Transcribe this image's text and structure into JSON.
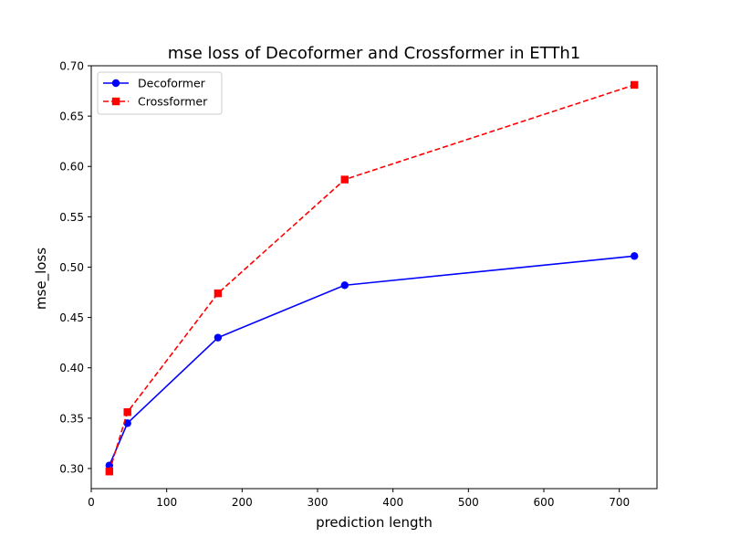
{
  "chart_data": {
    "type": "line",
    "title": "mse loss of Decoformer and Crossformer in ETTh1",
    "xlabel": "prediction length",
    "ylabel": "mse_loss",
    "xlim": [
      0,
      750
    ],
    "ylim": [
      0.28,
      0.7
    ],
    "xticks": [
      0,
      100,
      200,
      300,
      400,
      500,
      600,
      700
    ],
    "yticks": [
      "0.30",
      "0.35",
      "0.40",
      "0.45",
      "0.50",
      "0.55",
      "0.60",
      "0.65",
      "0.70"
    ],
    "x": [
      24,
      48,
      168,
      336,
      720
    ],
    "series": [
      {
        "name": "Decoformer",
        "values": [
          0.303,
          0.345,
          0.43,
          0.482,
          0.511
        ],
        "color": "#0000ff",
        "marker": "circle",
        "linestyle": "solid"
      },
      {
        "name": "Crossformer",
        "values": [
          0.297,
          0.356,
          0.474,
          0.587,
          0.681
        ],
        "color": "#ff0000",
        "marker": "square",
        "linestyle": "dashed"
      }
    ],
    "legend": "top-left",
    "grid": false
  }
}
